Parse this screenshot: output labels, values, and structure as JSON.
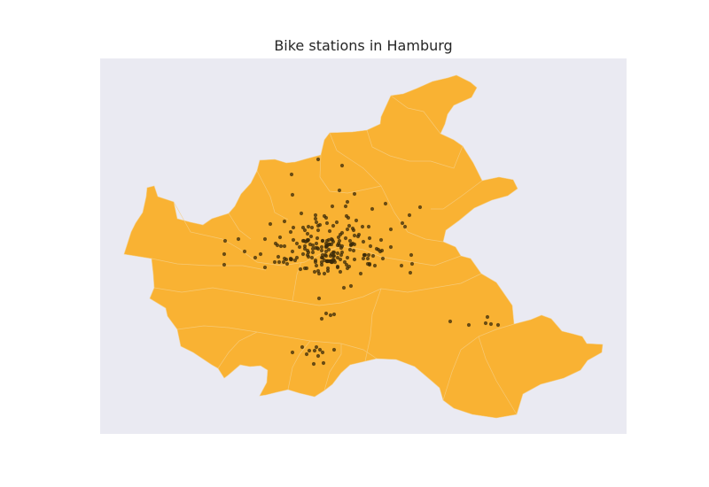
{
  "chart_data": {
    "type": "map",
    "title": "Bike stations in Hamburg",
    "grid": false,
    "axes_visible": false,
    "colors": {
      "figure_background": "#ffffff",
      "plot_background": "#eaeaf2",
      "region_fill": "#f9b233",
      "region_border": "#f4cf8a",
      "marker": "#3a2a0a"
    },
    "region": "Hamburg",
    "marker_shape": "circle",
    "station_count": 220
  }
}
